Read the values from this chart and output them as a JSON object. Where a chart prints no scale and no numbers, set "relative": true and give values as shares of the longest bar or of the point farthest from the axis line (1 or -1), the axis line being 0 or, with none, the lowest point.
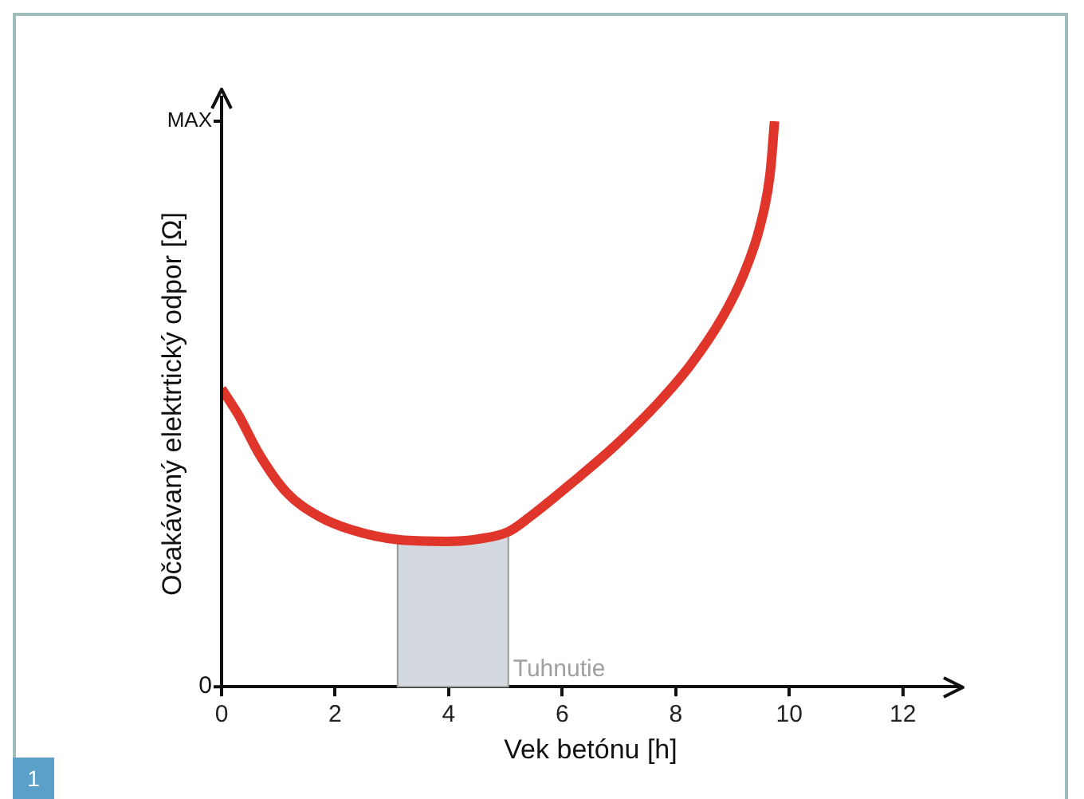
{
  "chart_data": {
    "type": "line",
    "relative": true,
    "xlabel": "Vek betónu [h]",
    "ylabel": "Očakávaný elektrtický odpor [Ω]",
    "xlim": [
      0,
      13
    ],
    "xticks": [
      0,
      2,
      4,
      6,
      8,
      10,
      12
    ],
    "x": [
      0,
      0.3,
      0.67,
      1.14,
      1.7,
      2.27,
      3.11,
      3.95,
      4.51,
      5.05,
      5.45,
      6.2,
      6.95,
      7.7,
      8.26,
      8.82,
      9.19,
      9.48,
      9.66,
      9.74
    ],
    "series": [
      {
        "color": "#e0352b",
        "values": [
          0.527,
          0.48,
          0.41,
          0.344,
          0.302,
          0.278,
          0.26,
          0.257,
          0.261,
          0.274,
          0.302,
          0.363,
          0.428,
          0.503,
          0.569,
          0.653,
          0.728,
          0.813,
          0.906,
          1.0
        ]
      }
    ],
    "bands": [
      {
        "axis": "x",
        "from": 3.1,
        "to": 5.05,
        "label": "Tuhnutie",
        "color": "#d3d9de"
      }
    ],
    "annotations": [
      "0",
      "MAX",
      "1"
    ],
    "legend": false,
    "grid": false,
    "marker": "none",
    "line_style": "solid"
  }
}
